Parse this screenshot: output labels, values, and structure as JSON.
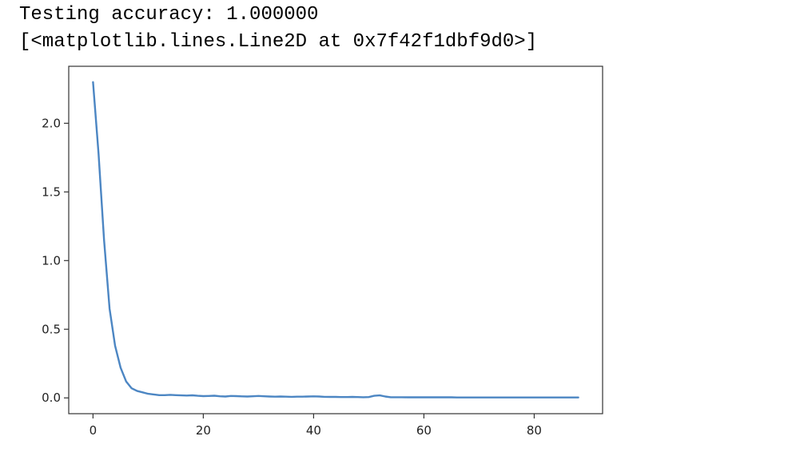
{
  "output": {
    "line1": "Testing accuracy: 1.000000",
    "line2": "[<matplotlib.lines.Line2D at 0x7f42f1dbf9d0>]"
  },
  "colors": {
    "line": "#4c86c3",
    "axes": "#333333",
    "text": "#222222"
  },
  "chart_data": {
    "type": "line",
    "title": "",
    "xlabel": "",
    "ylabel": "",
    "xlim": [
      -4.4,
      92.4
    ],
    "ylim": [
      -0.115,
      2.415
    ],
    "xticks": [
      0,
      20,
      40,
      60,
      80
    ],
    "yticks": [
      0.0,
      0.5,
      1.0,
      1.5,
      2.0
    ],
    "xtick_labels": [
      "0",
      "20",
      "40",
      "60",
      "80"
    ],
    "ytick_labels": [
      "0.0",
      "0.5",
      "1.0",
      "1.5",
      "2.0"
    ],
    "grid": false,
    "series": [
      {
        "x": [
          0,
          1,
          2,
          3,
          4,
          5,
          6,
          7,
          8,
          9,
          10,
          11,
          12,
          13,
          14,
          15,
          16,
          17,
          18,
          19,
          20,
          21,
          22,
          23,
          24,
          25,
          26,
          27,
          28,
          29,
          30,
          31,
          32,
          33,
          34,
          35,
          36,
          37,
          38,
          39,
          40,
          41,
          42,
          43,
          44,
          45,
          46,
          47,
          48,
          49,
          50,
          51,
          52,
          53,
          54,
          55,
          56,
          57,
          58,
          59,
          60,
          61,
          62,
          63,
          64,
          65,
          66,
          67,
          68,
          69,
          70,
          71,
          72,
          73,
          74,
          75,
          76,
          77,
          78,
          79,
          80,
          81,
          82,
          83,
          84,
          85,
          86,
          87,
          88
        ],
        "y": [
          2.3,
          1.78,
          1.15,
          0.65,
          0.38,
          0.22,
          0.12,
          0.07,
          0.05,
          0.04,
          0.03,
          0.025,
          0.02,
          0.02,
          0.022,
          0.02,
          0.018,
          0.017,
          0.019,
          0.015,
          0.013,
          0.014,
          0.016,
          0.012,
          0.01,
          0.014,
          0.013,
          0.011,
          0.01,
          0.012,
          0.014,
          0.012,
          0.01,
          0.009,
          0.01,
          0.009,
          0.008,
          0.009,
          0.009,
          0.01,
          0.011,
          0.01,
          0.008,
          0.007,
          0.007,
          0.006,
          0.006,
          0.007,
          0.006,
          0.005,
          0.006,
          0.015,
          0.018,
          0.01,
          0.005,
          0.005,
          0.005,
          0.004,
          0.004,
          0.004,
          0.004,
          0.004,
          0.004,
          0.004,
          0.004,
          0.004,
          0.003,
          0.003,
          0.003,
          0.003,
          0.003,
          0.003,
          0.003,
          0.003,
          0.003,
          0.003,
          0.003,
          0.003,
          0.003,
          0.003,
          0.003,
          0.003,
          0.003,
          0.003,
          0.003,
          0.003,
          0.003,
          0.003,
          0.003
        ]
      }
    ]
  }
}
